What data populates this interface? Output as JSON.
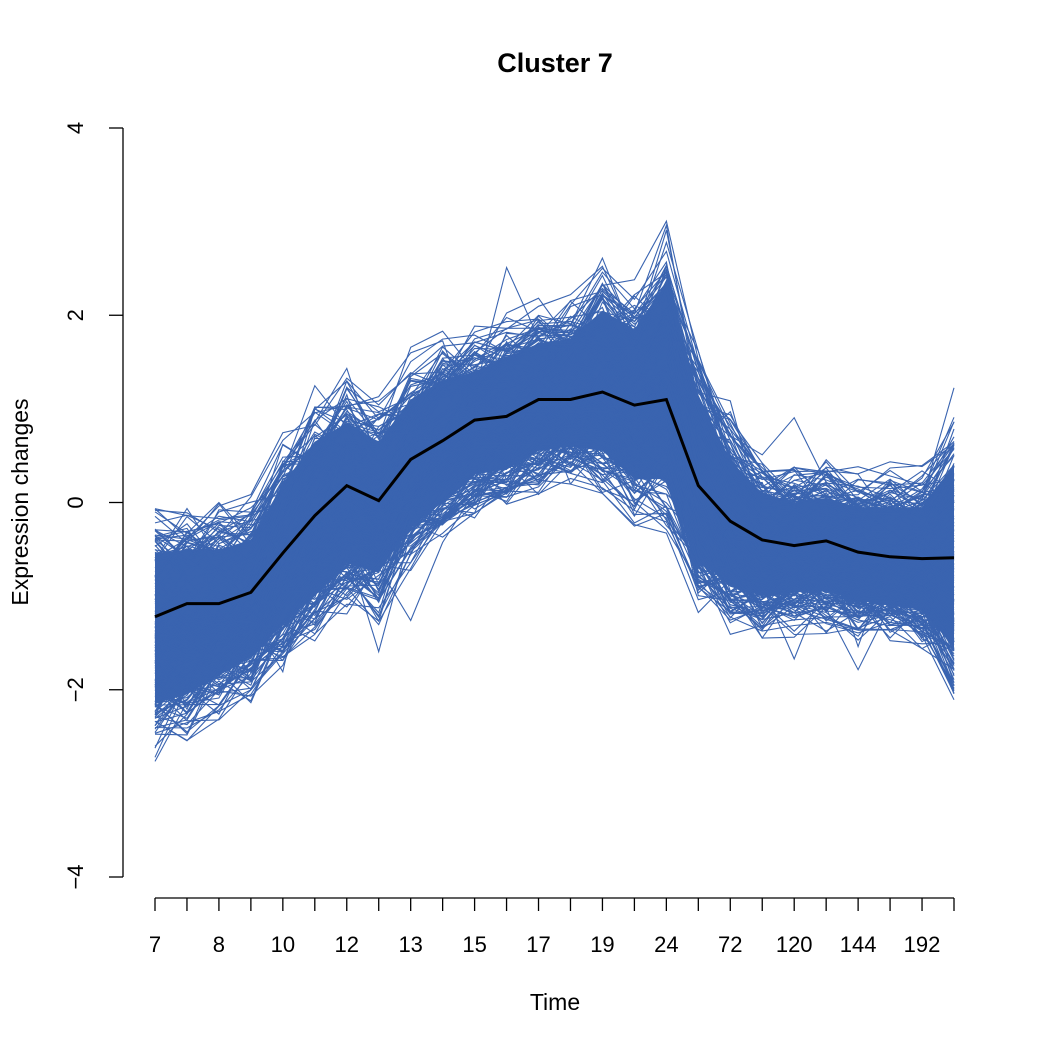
{
  "chart_data": {
    "type": "line",
    "title": "Cluster 7",
    "xlabel": "Time",
    "ylabel": "Expression changes",
    "ylim": [
      -4,
      4
    ],
    "y_ticks": [
      -4,
      -2,
      0,
      2,
      4
    ],
    "x_positions": 26,
    "x_tick_labels": [
      {
        "pos": 1,
        "label": "7"
      },
      {
        "pos": 3,
        "label": "8"
      },
      {
        "pos": 5,
        "label": "10"
      },
      {
        "pos": 7,
        "label": "12"
      },
      {
        "pos": 9,
        "label": "13"
      },
      {
        "pos": 11,
        "label": "15"
      },
      {
        "pos": 13,
        "label": "17"
      },
      {
        "pos": 15,
        "label": "19"
      },
      {
        "pos": 17,
        "label": "24"
      },
      {
        "pos": 19,
        "label": "72"
      },
      {
        "pos": 21,
        "label": "120"
      },
      {
        "pos": 23,
        "label": "144"
      },
      {
        "pos": 25,
        "label": "192"
      }
    ],
    "grid": false,
    "legend": "none",
    "band_color": "#3a64b0",
    "centroid_color": "#000000",
    "series": [
      {
        "role": "centroid",
        "values": [
          -1.22,
          -1.08,
          -1.08,
          -0.96,
          -0.54,
          -0.14,
          0.18,
          0.02,
          0.46,
          0.66,
          0.88,
          0.92,
          1.1,
          1.1,
          1.18,
          1.04,
          1.1,
          0.18,
          -0.2,
          -0.4,
          -0.46,
          -0.41,
          -0.53,
          -0.58,
          -0.6,
          -0.59
        ]
      }
    ],
    "band": {
      "upper": [
        -0.3,
        -0.25,
        -0.25,
        -0.15,
        0.45,
        0.9,
        1.1,
        0.9,
        1.35,
        1.55,
        1.65,
        1.8,
        1.95,
        2.0,
        2.3,
        2.1,
        2.6,
        1.4,
        0.7,
        0.35,
        0.25,
        0.3,
        0.2,
        0.2,
        0.2,
        0.65
      ],
      "lower": [
        -2.4,
        -2.3,
        -2.1,
        -1.9,
        -1.55,
        -1.25,
        -0.9,
        -1.0,
        -0.5,
        -0.25,
        0.05,
        0.1,
        0.3,
        0.35,
        0.3,
        0.0,
        0.0,
        -0.85,
        -1.15,
        -1.25,
        -1.2,
        -1.2,
        -1.3,
        -1.35,
        -1.4,
        -1.8
      ]
    }
  }
}
